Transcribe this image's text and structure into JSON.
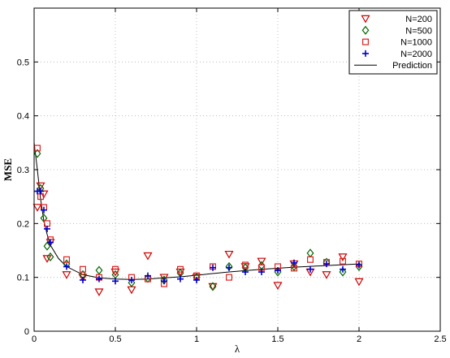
{
  "chart_data": {
    "type": "scatter",
    "title": "",
    "xlabel": "λ",
    "ylabel": "MSE",
    "xlim": [
      0,
      2.5
    ],
    "ylim": [
      0,
      0.6
    ],
    "xticks": [
      "0",
      "0.5",
      "1",
      "1.5",
      "2",
      "2.5"
    ],
    "yticks": [
      "0",
      "0.1",
      "0.2",
      "0.3",
      "0.4",
      "0.5"
    ],
    "grid": true,
    "legend_position": "top-right",
    "series": [
      {
        "name": "N=200",
        "marker": "triangle-down",
        "color": "#cc0000",
        "x": [
          0.02,
          0.04,
          0.06,
          0.08,
          0.1,
          0.2,
          0.3,
          0.4,
          0.5,
          0.6,
          0.7,
          0.8,
          0.9,
          1.0,
          1.1,
          1.2,
          1.3,
          1.4,
          1.5,
          1.6,
          1.7,
          1.8,
          1.9,
          2.0
        ],
        "y": [
          0.23,
          0.27,
          0.255,
          0.135,
          0.165,
          0.105,
          0.1,
          0.073,
          0.11,
          0.077,
          0.14,
          0.1,
          0.11,
          0.1,
          0.083,
          0.143,
          0.12,
          0.13,
          0.085,
          0.125,
          0.11,
          0.105,
          0.138,
          0.092
        ]
      },
      {
        "name": "N=500",
        "marker": "diamond",
        "color": "#006600",
        "x": [
          0.02,
          0.04,
          0.06,
          0.08,
          0.1,
          0.2,
          0.3,
          0.4,
          0.5,
          0.6,
          0.7,
          0.8,
          0.9,
          1.0,
          1.1,
          1.2,
          1.3,
          1.4,
          1.5,
          1.6,
          1.7,
          1.8,
          1.9,
          2.0
        ],
        "y": [
          0.33,
          0.265,
          0.21,
          0.158,
          0.138,
          0.125,
          0.105,
          0.113,
          0.105,
          0.09,
          0.098,
          0.095,
          0.108,
          0.1,
          0.083,
          0.12,
          0.118,
          0.122,
          0.11,
          0.12,
          0.145,
          0.128,
          0.11,
          0.12
        ]
      },
      {
        "name": "N=1000",
        "marker": "square",
        "color": "#dd2222",
        "x": [
          0.02,
          0.04,
          0.06,
          0.08,
          0.1,
          0.2,
          0.3,
          0.4,
          0.5,
          0.6,
          0.7,
          0.8,
          0.9,
          1.0,
          1.1,
          1.2,
          1.3,
          1.4,
          1.5,
          1.6,
          1.7,
          1.8,
          1.9,
          2.0
        ],
        "y": [
          0.34,
          0.25,
          0.23,
          0.2,
          0.17,
          0.133,
          0.115,
          0.1,
          0.115,
          0.1,
          0.097,
          0.088,
          0.115,
          0.103,
          0.12,
          0.1,
          0.123,
          0.118,
          0.12,
          0.117,
          0.133,
          0.128,
          0.13,
          0.125
        ]
      },
      {
        "name": "N=2000",
        "marker": "plus",
        "color": "#0000cc",
        "x": [
          0.02,
          0.04,
          0.06,
          0.08,
          0.1,
          0.2,
          0.3,
          0.4,
          0.5,
          0.6,
          0.7,
          0.8,
          0.9,
          1.0,
          1.1,
          1.2,
          1.3,
          1.4,
          1.5,
          1.6,
          1.7,
          1.8,
          1.9,
          2.0
        ],
        "y": [
          0.26,
          0.26,
          0.225,
          0.19,
          0.165,
          0.12,
          0.095,
          0.097,
          0.093,
          0.095,
          0.103,
          0.093,
          0.097,
          0.095,
          0.118,
          0.118,
          0.11,
          0.11,
          0.113,
          0.127,
          0.115,
          0.125,
          0.115,
          0.123
        ]
      },
      {
        "name": "Prediction",
        "marker": "line",
        "color": "#000000",
        "x": [
          0.0,
          0.02,
          0.04,
          0.06,
          0.08,
          0.1,
          0.15,
          0.2,
          0.3,
          0.4,
          0.5,
          0.6,
          0.7,
          0.8,
          0.9,
          1.0,
          1.2,
          1.4,
          1.6,
          1.8,
          2.0
        ],
        "y": [
          0.35,
          0.3,
          0.245,
          0.205,
          0.18,
          0.16,
          0.135,
          0.12,
          0.105,
          0.099,
          0.097,
          0.096,
          0.097,
          0.099,
          0.101,
          0.104,
          0.11,
          0.115,
          0.119,
          0.122,
          0.125
        ]
      }
    ]
  }
}
